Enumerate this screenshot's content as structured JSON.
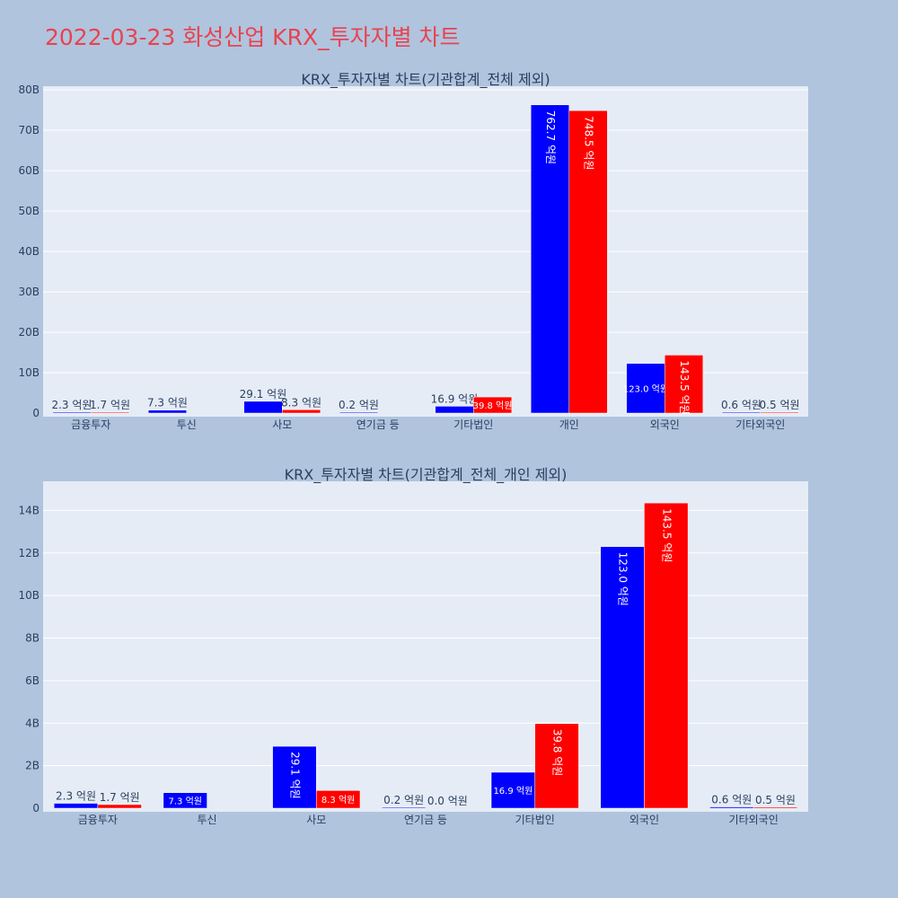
{
  "title": "2022-03-23 화성산업 KRX_투자자별 차트",
  "colors": {
    "buy": "#0000ff",
    "sell": "#ff0000",
    "plot_bg": "#e5ecf6",
    "page_bg": "#b0c4de",
    "title": "#e8434f"
  },
  "chart_data": [
    {
      "type": "bar",
      "title": "KRX_투자자별 차트(기관합계_전체 제외)",
      "categories": [
        "금융투자",
        "투신",
        "사모",
        "연기금 등",
        "기타법인",
        "개인",
        "외국인",
        "기타외국인"
      ],
      "series": [
        {
          "values": [
            230000000,
            730000000,
            2910000000,
            20000000,
            1690000000,
            76270000000,
            12300000000,
            60000000
          ],
          "labels": [
            "2.3 억원",
            "7.3 억원",
            "29.1 억원",
            "0.2 억원",
            "16.9 억원",
            "762.7 억원",
            "123.0 억원",
            "0.6 억원"
          ]
        },
        {
          "values": [
            170000000,
            0,
            830000000,
            0,
            3980000000,
            74850000000,
            14350000000,
            50000000
          ],
          "labels": [
            "1.7 억원",
            "",
            "8.3 억원",
            "",
            "39.8 억원",
            "748.5 억원",
            "143.5 억원",
            "0.5 억원"
          ]
        }
      ],
      "yticks": [
        "0",
        "10B",
        "20B",
        "30B",
        "40B",
        "50B",
        "60B",
        "70B",
        "80B"
      ],
      "ytick_values": [
        0,
        10000000000,
        20000000000,
        30000000000,
        40000000000,
        50000000000,
        60000000000,
        70000000000,
        80000000000
      ],
      "ylim": [
        0,
        80000000000
      ],
      "grid": true
    },
    {
      "type": "bar",
      "title": "KRX_투자자별 차트(기관합계_전체_개인 제외)",
      "categories": [
        "금융투자",
        "투신",
        "사모",
        "연기금 등",
        "기타법인",
        "외국인",
        "기타외국인"
      ],
      "series": [
        {
          "values": [
            230000000,
            730000000,
            2910000000,
            20000000,
            1690000000,
            12300000000,
            60000000
          ],
          "labels": [
            "2.3 억원",
            "7.3 억원",
            "29.1 억원",
            "0.2 억원",
            "16.9 억원",
            "123.0 억원",
            "0.6 억원"
          ]
        },
        {
          "values": [
            170000000,
            0,
            830000000,
            0,
            3980000000,
            14350000000,
            50000000
          ],
          "labels": [
            "1.7 억원",
            "",
            "8.3 억원",
            "0.0 억원",
            "39.8 억원",
            "143.5 억원",
            "0.5 억원"
          ]
        }
      ],
      "yticks": [
        "0",
        "2B",
        "4B",
        "6B",
        "8B",
        "10B",
        "12B",
        "14B"
      ],
      "ytick_values": [
        0,
        2000000000,
        4000000000,
        6000000000,
        8000000000,
        10000000000,
        12000000000,
        14000000000
      ],
      "ylim": [
        0,
        15200000000
      ],
      "grid": true
    }
  ]
}
